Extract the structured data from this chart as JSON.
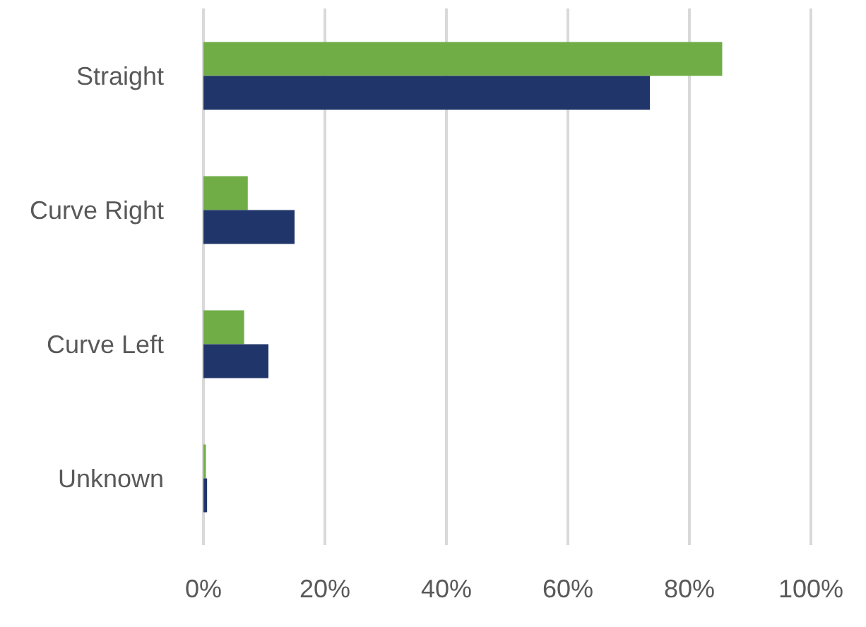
{
  "chart_data": {
    "type": "bar",
    "orientation": "horizontal",
    "categories": [
      "Straight",
      "Curve Right",
      "Curve Left",
      "Unknown"
    ],
    "series": [
      {
        "color": "#70ad47",
        "values": [
          85.4,
          7.3,
          6.7,
          0.4
        ]
      },
      {
        "color": "#203569",
        "values": [
          73.5,
          15.0,
          10.7,
          0.6
        ]
      }
    ],
    "xlim": [
      0,
      100
    ],
    "xticks": [
      {
        "value": 0,
        "label": "0%"
      },
      {
        "value": 20,
        "label": "20%"
      },
      {
        "value": 40,
        "label": "40%"
      },
      {
        "value": 60,
        "label": "60%"
      },
      {
        "value": 80,
        "label": "80%"
      },
      {
        "value": 100,
        "label": "100%"
      }
    ],
    "grid": "x",
    "legend": false
  }
}
